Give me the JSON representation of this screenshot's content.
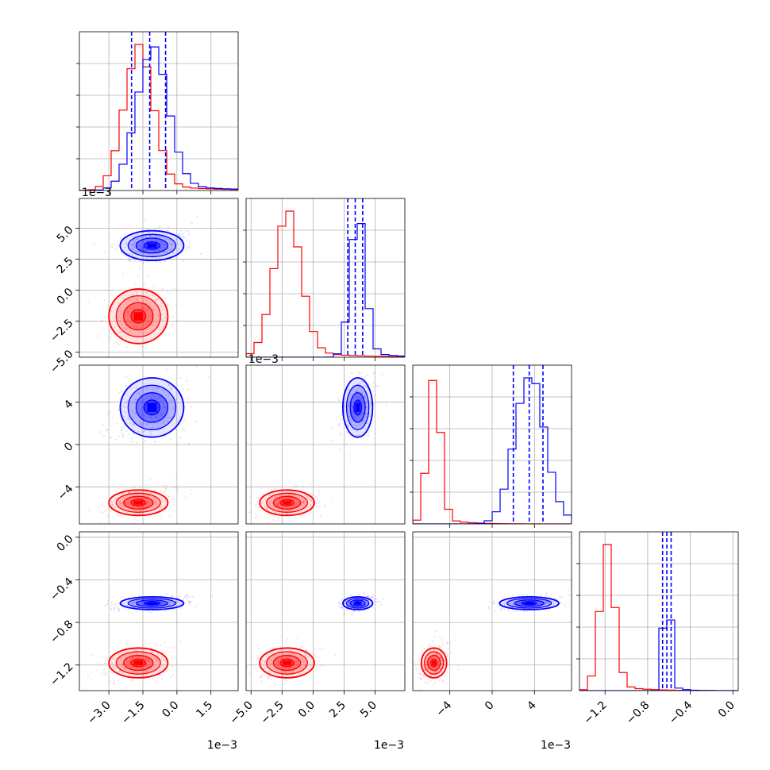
{
  "chart_data": {
    "type": "corner",
    "grid": true,
    "colors": {
      "red": "#ff0000",
      "blue": "#0000ff"
    },
    "series": [
      {
        "key": "red",
        "color": "#ff0000",
        "means": [
          -0.0017,
          -0.0021,
          -0.0055,
          -1.18
        ],
        "sds": [
          0.00065,
          0.0011,
          0.0006,
          0.07
        ]
      },
      {
        "key": "blue",
        "color": "#0000ff",
        "means": [
          -0.0011,
          0.0036,
          0.0035,
          -0.62
        ],
        "sds": [
          0.0007,
          0.0006,
          0.0014,
          0.03
        ],
        "quantile_lines": [
          [
            -0.002,
            -0.0012,
            -0.0005
          ],
          [
            0.0028,
            0.0034,
            0.004
          ],
          [
            0.002,
            0.0035,
            0.0048
          ],
          [
            -0.66,
            -0.62,
            -0.58
          ]
        ]
      }
    ],
    "axes": [
      {
        "lim": [
          -0.0043,
          0.0027
        ],
        "ticks": [
          -0.003,
          -0.0015,
          0.0,
          0.0015
        ],
        "tick_labels": [
          "−3.0",
          "−1.5",
          "0.0",
          "1.5"
        ],
        "offset": "1e−3"
      },
      {
        "lim": [
          -0.0054,
          0.0074
        ],
        "ticks": [
          -0.005,
          -0.0025,
          0.0,
          0.0025,
          0.005
        ],
        "tick_labels": [
          "−5.0",
          "−2.5",
          "0.0",
          "2.5",
          "5.0"
        ],
        "offset": "1e−3"
      },
      {
        "lim": [
          -0.0075,
          0.0075
        ],
        "ticks": [
          -0.004,
          0.0,
          0.004
        ],
        "tick_labels": [
          "−4",
          "0",
          "4"
        ],
        "offset": "1e−3"
      },
      {
        "lim": [
          -1.44,
          0.05
        ],
        "ticks": [
          -1.2,
          -0.8,
          -0.4,
          0.0
        ],
        "tick_labels": [
          "−1.2",
          "−0.8",
          "−0.4",
          "0.0"
        ],
        "offset": ""
      }
    ],
    "ylabel_offsets": [
      "1e−3",
      "1e−3",
      "",
      ""
    ]
  }
}
